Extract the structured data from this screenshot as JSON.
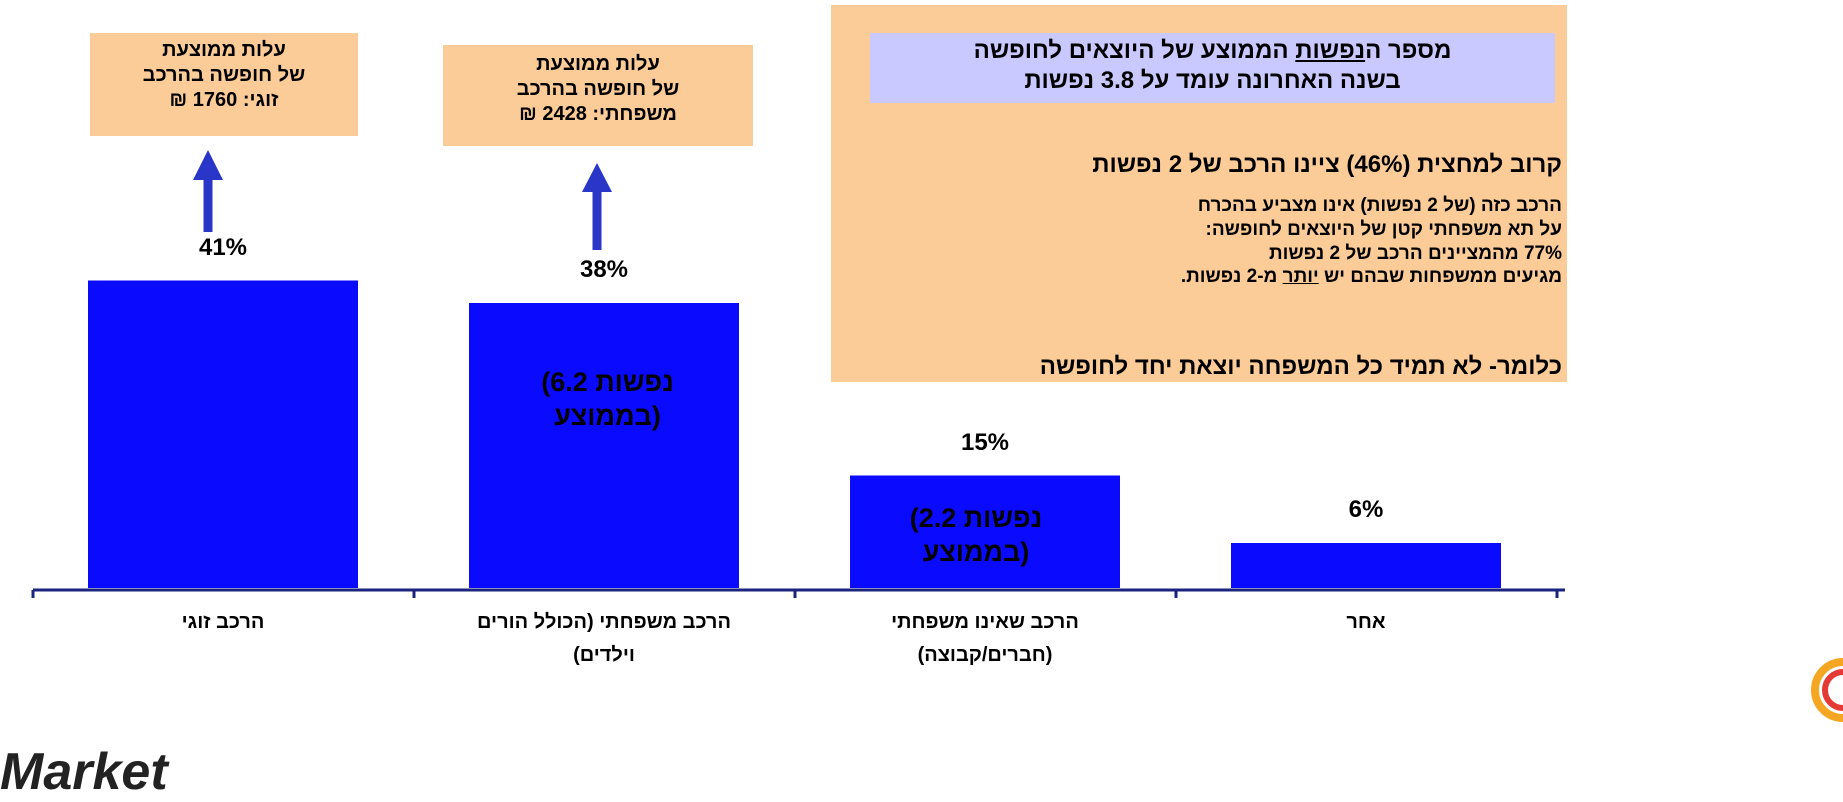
{
  "chart_data": {
    "type": "bar",
    "categories": [
      "הרכב זוגי",
      "הרכב משפחתי (הכולל הורים וילדים)",
      "הרכב שאינו משפחתי (חברים/קבוצה)",
      "אחר"
    ],
    "values": [
      41,
      38,
      15,
      6
    ],
    "value_labels": [
      "41%",
      "38%",
      "15%",
      "6%"
    ],
    "color": "#0a0aff",
    "annotations": {
      "couple_cost": [
        "עלות ממוצעת",
        "של חופשה בהרכב",
        "זוגי: 1760 ₪"
      ],
      "family_cost": [
        "עלות ממוצעת",
        "של חופשה בהרכב",
        "משפחתי: 2428 ₪"
      ],
      "family_size": [
        "(6.2 נפשות",
        "בממוצע)"
      ],
      "nonfamily_size": [
        "(2.2 נפשות",
        "בממוצע)"
      ],
      "headline": [
        [
          {
            "text": "מספר ה"
          },
          {
            "text": "נפשות",
            "underline": true
          },
          {
            "text": " הממוצע של היוצאים לחופשה"
          }
        ],
        "בשנה האחרונה עומד על 3.8 נפשות"
      ],
      "half": "קרוב למחצית (46%) ציינו הרכב של 2 נפשות",
      "detail": [
        "הרכב כזה (של 2 נפשות) אינו מצביע בהכרח",
        "על תא משפחתי קטן של היוצאים לחופשה:",
        "77% מהמציינים הרכב של 2 נפשות",
        [
          {
            "text": "מגיעים ממשפחות שבהם יש "
          },
          {
            "text": "יותר",
            "underline": true
          },
          {
            "text": " מ-2 נפשות."
          }
        ]
      ],
      "conclusion": "כלומר- לא תמיד כל המשפחה יוצאת יחד לחופשה"
    },
    "logo_text": "Market"
  }
}
